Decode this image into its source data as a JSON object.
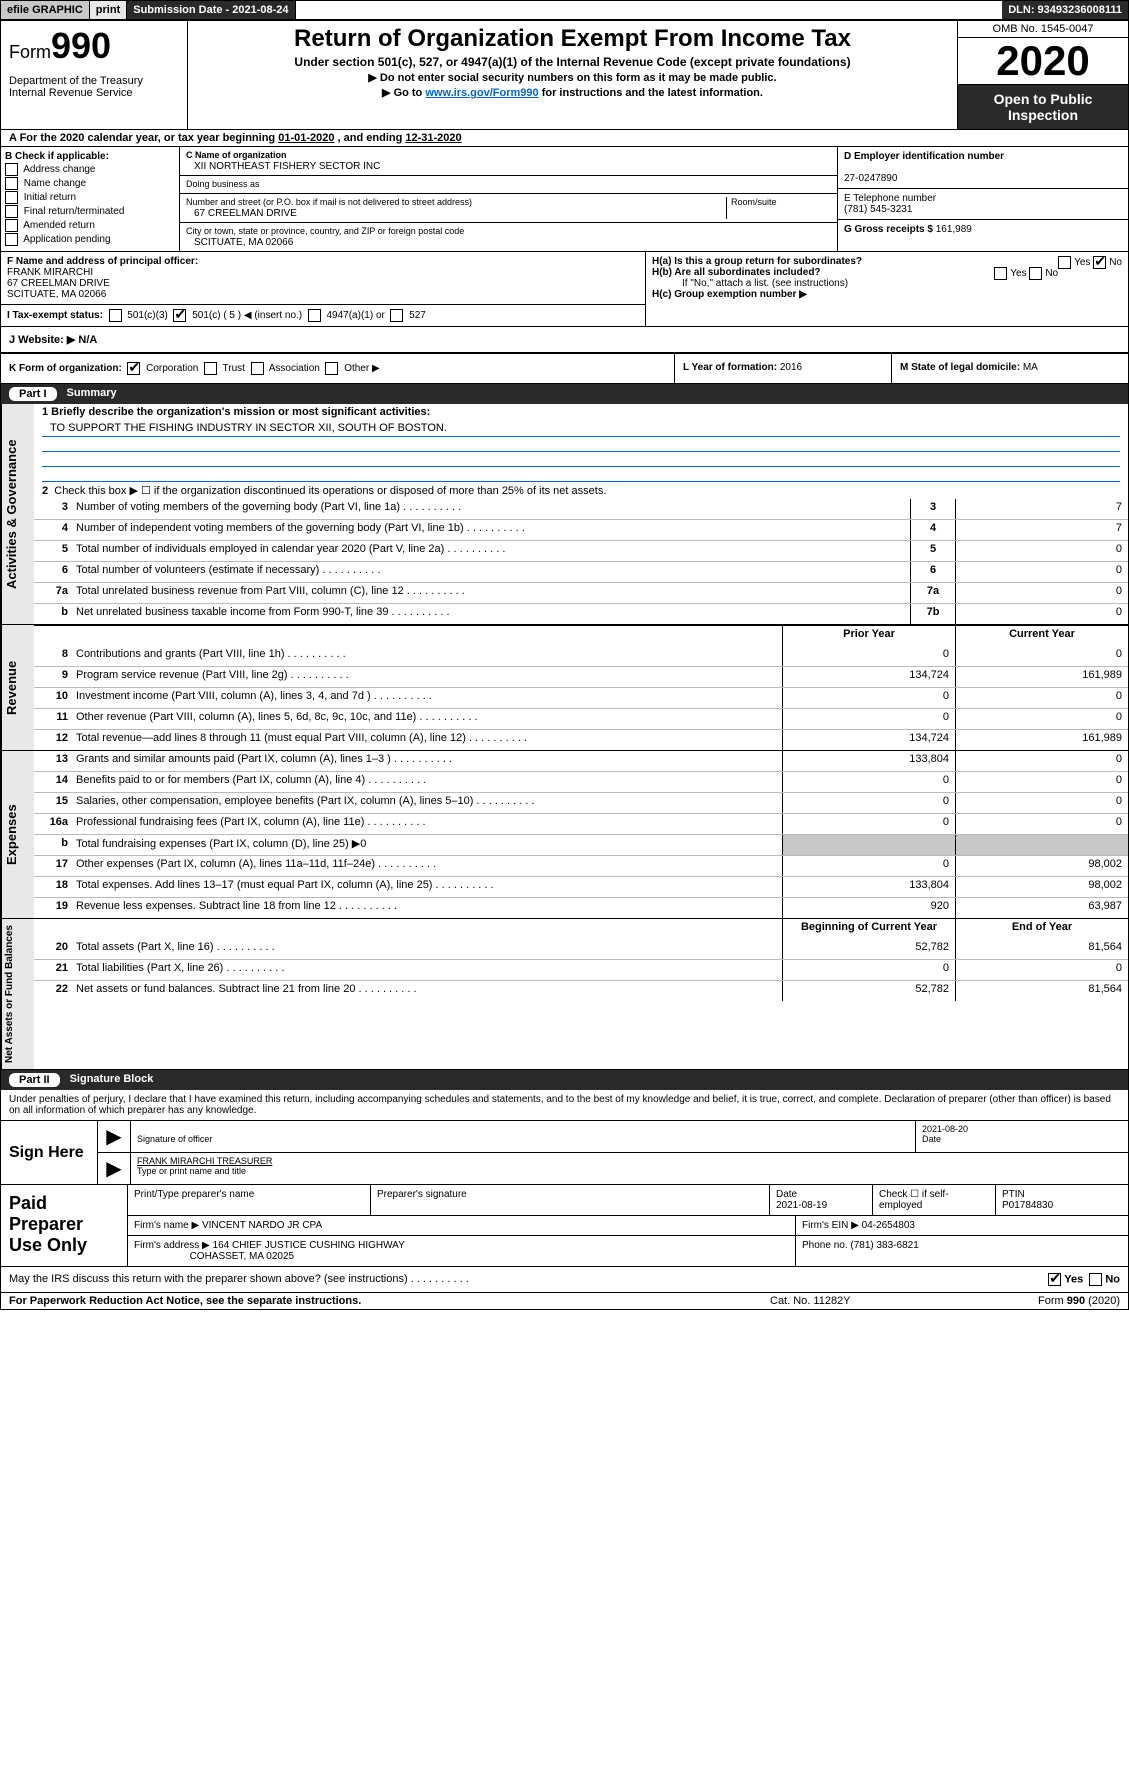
{
  "topbar": {
    "efile": "efile GRAPHIC",
    "print": "print",
    "submission": "Submission Date - 2021-08-24",
    "dln": "DLN: 93493236008111"
  },
  "header": {
    "form_prefix": "Form",
    "form_number": "990",
    "dept": "Department of the Treasury\nInternal Revenue Service",
    "title": "Return of Organization Exempt From Income Tax",
    "subtitle": "Under section 501(c), 527, or 4947(a)(1) of the Internal Revenue Code (except private foundations)",
    "instr1": "▶ Do not enter social security numbers on this form as it may be made public.",
    "instr2_pre": "▶ Go to ",
    "instr2_link": "www.irs.gov/Form990",
    "instr2_post": " for instructions and the latest information.",
    "omb": "OMB No. 1545-0047",
    "year": "2020",
    "open": "Open to Public Inspection"
  },
  "period": {
    "text_a": "A For the 2020 calendar year, or tax year beginning ",
    "begin": "01-01-2020",
    "text_b": "  , and ending ",
    "end": "12-31-2020"
  },
  "boxB": {
    "label": "B Check if applicable:",
    "items": [
      "Address change",
      "Name change",
      "Initial return",
      "Final return/terminated",
      "Amended return",
      "Application pending"
    ]
  },
  "boxC": {
    "name_lbl": "C Name of organization",
    "name": "XII NORTHEAST FISHERY SECTOR INC",
    "dba_lbl": "Doing business as",
    "dba": "",
    "addr_lbl": "Number and street (or P.O. box if mail is not delivered to street address)",
    "addr": "67 CREELMAN DRIVE",
    "room_lbl": "Room/suite",
    "city_lbl": "City or town, state or province, country, and ZIP or foreign postal code",
    "city": "SCITUATE, MA  02066"
  },
  "boxD": {
    "lbl": "D Employer identification number",
    "val": "27-0247890"
  },
  "boxE": {
    "lbl": "E Telephone number",
    "val": "(781) 545-3231"
  },
  "boxG": {
    "lbl": "G Gross receipts $ ",
    "val": "161,989"
  },
  "boxF": {
    "lbl": "F Name and address of principal officer:",
    "name": "FRANK MIRARCHI",
    "addr1": "67 CREELMAN DRIVE",
    "addr2": "SCITUATE, MA  02066"
  },
  "boxH": {
    "a": "H(a)  Is this a group return for subordinates?",
    "a_ans": "No",
    "b": "H(b)  Are all subordinates included?",
    "b_note": "If \"No,\" attach a list. (see instructions)",
    "c": "H(c)  Group exemption number ▶"
  },
  "boxI": {
    "lbl": "I  Tax-exempt status:",
    "opts": [
      "501(c)(3)",
      "501(c) ( 5 ) ◀ (insert no.)",
      "4947(a)(1) or",
      "527"
    ],
    "checked_idx": 1
  },
  "boxJ": {
    "lbl": "J  Website: ▶",
    "val": "N/A"
  },
  "boxK": {
    "lbl": "K Form of organization:",
    "opts": [
      "Corporation",
      "Trust",
      "Association",
      "Other ▶"
    ],
    "checked_idx": 0,
    "L_lbl": "L Year of formation: ",
    "L_val": "2016",
    "M_lbl": "M State of legal domicile: ",
    "M_val": "MA"
  },
  "part1": {
    "label": "Part I",
    "title": "Summary"
  },
  "governance": {
    "vlabel": "Activities & Governance",
    "q1_lbl": "1  Briefly describe the organization's mission or most significant activities:",
    "q1_val": "TO SUPPORT THE FISHING INDUSTRY IN SECTOR XII, SOUTH OF BOSTON.",
    "q2": "Check this box ▶ ☐  if the organization discontinued its operations or disposed of more than 25% of its net assets.",
    "rows": [
      {
        "n": "3",
        "t": "Number of voting members of the governing body (Part VI, line 1a)",
        "box": "3",
        "v": "7"
      },
      {
        "n": "4",
        "t": "Number of independent voting members of the governing body (Part VI, line 1b)",
        "box": "4",
        "v": "7"
      },
      {
        "n": "5",
        "t": "Total number of individuals employed in calendar year 2020 (Part V, line 2a)",
        "box": "5",
        "v": "0"
      },
      {
        "n": "6",
        "t": "Total number of volunteers (estimate if necessary)",
        "box": "6",
        "v": "0"
      },
      {
        "n": "7a",
        "t": "Total unrelated business revenue from Part VIII, column (C), line 12",
        "box": "7a",
        "v": "0"
      },
      {
        "n": "b",
        "t": "Net unrelated business taxable income from Form 990-T, line 39",
        "box": "7b",
        "v": "0"
      }
    ]
  },
  "revenue": {
    "vlabel": "Revenue",
    "hdr": {
      "py": "Prior Year",
      "cy": "Current Year"
    },
    "rows": [
      {
        "n": "8",
        "t": "Contributions and grants (Part VIII, line 1h)",
        "py": "0",
        "cy": "0"
      },
      {
        "n": "9",
        "t": "Program service revenue (Part VIII, line 2g)",
        "py": "134,724",
        "cy": "161,989"
      },
      {
        "n": "10",
        "t": "Investment income (Part VIII, column (A), lines 3, 4, and 7d )",
        "py": "0",
        "cy": "0"
      },
      {
        "n": "11",
        "t": "Other revenue (Part VIII, column (A), lines 5, 6d, 8c, 9c, 10c, and 11e)",
        "py": "0",
        "cy": "0"
      },
      {
        "n": "12",
        "t": "Total revenue—add lines 8 through 11 (must equal Part VIII, column (A), line 12)",
        "py": "134,724",
        "cy": "161,989"
      }
    ]
  },
  "expenses": {
    "vlabel": "Expenses",
    "rows": [
      {
        "n": "13",
        "t": "Grants and similar amounts paid (Part IX, column (A), lines 1–3 )",
        "py": "133,804",
        "cy": "0"
      },
      {
        "n": "14",
        "t": "Benefits paid to or for members (Part IX, column (A), line 4)",
        "py": "0",
        "cy": "0"
      },
      {
        "n": "15",
        "t": "Salaries, other compensation, employee benefits (Part IX, column (A), lines 5–10)",
        "py": "0",
        "cy": "0"
      },
      {
        "n": "16a",
        "t": "Professional fundraising fees (Part IX, column (A), line 11e)",
        "py": "0",
        "cy": "0"
      },
      {
        "n": "b",
        "t": "Total fundraising expenses (Part IX, column (D), line 25) ▶0",
        "py": "",
        "cy": "",
        "shade": true
      },
      {
        "n": "17",
        "t": "Other expenses (Part IX, column (A), lines 11a–11d, 11f–24e)",
        "py": "0",
        "cy": "98,002"
      },
      {
        "n": "18",
        "t": "Total expenses. Add lines 13–17 (must equal Part IX, column (A), line 25)",
        "py": "133,804",
        "cy": "98,002"
      },
      {
        "n": "19",
        "t": "Revenue less expenses. Subtract line 18 from line 12",
        "py": "920",
        "cy": "63,987"
      }
    ]
  },
  "netassets": {
    "vlabel": "Net Assets or Fund Balances",
    "hdr": {
      "py": "Beginning of Current Year",
      "cy": "End of Year"
    },
    "rows": [
      {
        "n": "20",
        "t": "Total assets (Part X, line 16)",
        "py": "52,782",
        "cy": "81,564"
      },
      {
        "n": "21",
        "t": "Total liabilities (Part X, line 26)",
        "py": "0",
        "cy": "0"
      },
      {
        "n": "22",
        "t": "Net assets or fund balances. Subtract line 21 from line 20",
        "py": "52,782",
        "cy": "81,564"
      }
    ]
  },
  "part2": {
    "label": "Part II",
    "title": "Signature Block"
  },
  "signature": {
    "disclaimer": "Under penalties of perjury, I declare that I have examined this return, including accompanying schedules and statements, and to the best of my knowledge and belief, it is true, correct, and complete. Declaration of preparer (other than officer) is based on all information of which preparer has any knowledge.",
    "sign_here": "Sign Here",
    "sig_lbl": "Signature of officer",
    "date": "2021-08-20",
    "date_lbl": "Date",
    "name": "FRANK MIRARCHI  TREASURER",
    "name_lbl": "Type or print name and title"
  },
  "preparer": {
    "label": "Paid Preparer Use Only",
    "h1": "Print/Type preparer's name",
    "h2": "Preparer's signature",
    "h3": "Date",
    "h4": "Check ☐ if self-employed",
    "h5": "PTIN",
    "date": "2021-08-19",
    "ptin": "P01784830",
    "firm_lbl": "Firm's name    ▶",
    "firm": "VINCENT NARDO JR CPA",
    "ein_lbl": "Firm's EIN ▶",
    "ein": "04-2654803",
    "addr_lbl": "Firm's address ▶",
    "addr1": "164 CHIEF JUSTICE CUSHING HIGHWAY",
    "addr2": "COHASSET, MA  02025",
    "phone_lbl": "Phone no. ",
    "phone": "(781) 383-6821"
  },
  "discuss": {
    "text": "May the IRS discuss this return with the preparer shown above? (see instructions)",
    "yes_checked": true
  },
  "footer": {
    "left": "For Paperwork Reduction Act Notice, see the separate instructions.",
    "mid": "Cat. No. 11282Y",
    "right": "Form 990 (2020)"
  }
}
